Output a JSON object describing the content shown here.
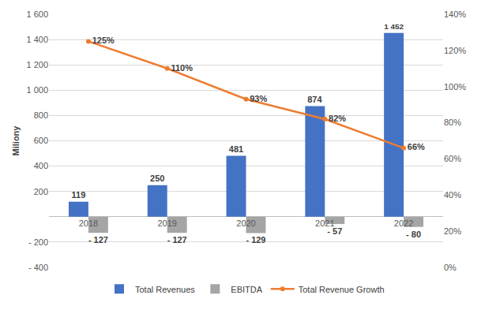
{
  "chart_data": {
    "type": "bar",
    "y_label": "Miliony",
    "categories": [
      "2018",
      "2019",
      "2020",
      "2021",
      "2022"
    ],
    "series": [
      {
        "name": "Total Revenues",
        "type": "bar",
        "color": "#4472c4",
        "values": [
          119,
          250,
          481,
          874,
          1452
        ],
        "value_labels": [
          "119",
          "250",
          "481",
          "874",
          "1 452"
        ]
      },
      {
        "name": "EBITDA",
        "type": "bar",
        "color": "#a5a5a5",
        "values": [
          -127,
          -127,
          -129,
          -57,
          -80
        ],
        "value_labels": [
          "- 127",
          "- 127",
          "- 129",
          "- 57",
          "- 80"
        ]
      },
      {
        "name": "Total Revenue Growth",
        "type": "line",
        "axis": "y2",
        "color": "#ed7d31",
        "marker": "circle",
        "line_style": "solid",
        "values": [
          125,
          110,
          93,
          82,
          66
        ],
        "value_labels": [
          "125%",
          "110%",
          "93%",
          "82%",
          "66%"
        ]
      }
    ],
    "ylim": [
      -400,
      1600
    ],
    "yticks": [
      {
        "value": -400,
        "label": "- 400"
      },
      {
        "value": -200,
        "label": "- 200"
      },
      200,
      400,
      600,
      800,
      {
        "value": 1000,
        "label": "1 000"
      },
      {
        "value": 1200,
        "label": "1 200"
      },
      {
        "value": 1400,
        "label": "1 400"
      },
      {
        "value": 1600,
        "label": "1 600"
      }
    ],
    "y2lim": [
      0,
      140
    ],
    "y2ticks": [
      {
        "value": 0,
        "label": "0%"
      },
      {
        "value": 20,
        "label": "20%"
      },
      {
        "value": 40,
        "label": "40%"
      },
      {
        "value": 60,
        "label": "60%"
      },
      {
        "value": 80,
        "label": "80%"
      },
      {
        "value": 100,
        "label": "100%"
      },
      {
        "value": 120,
        "label": "120%"
      },
      {
        "value": 140,
        "label": "140%"
      }
    ],
    "grid": true,
    "legend": "bottom",
    "data_labels": true
  }
}
